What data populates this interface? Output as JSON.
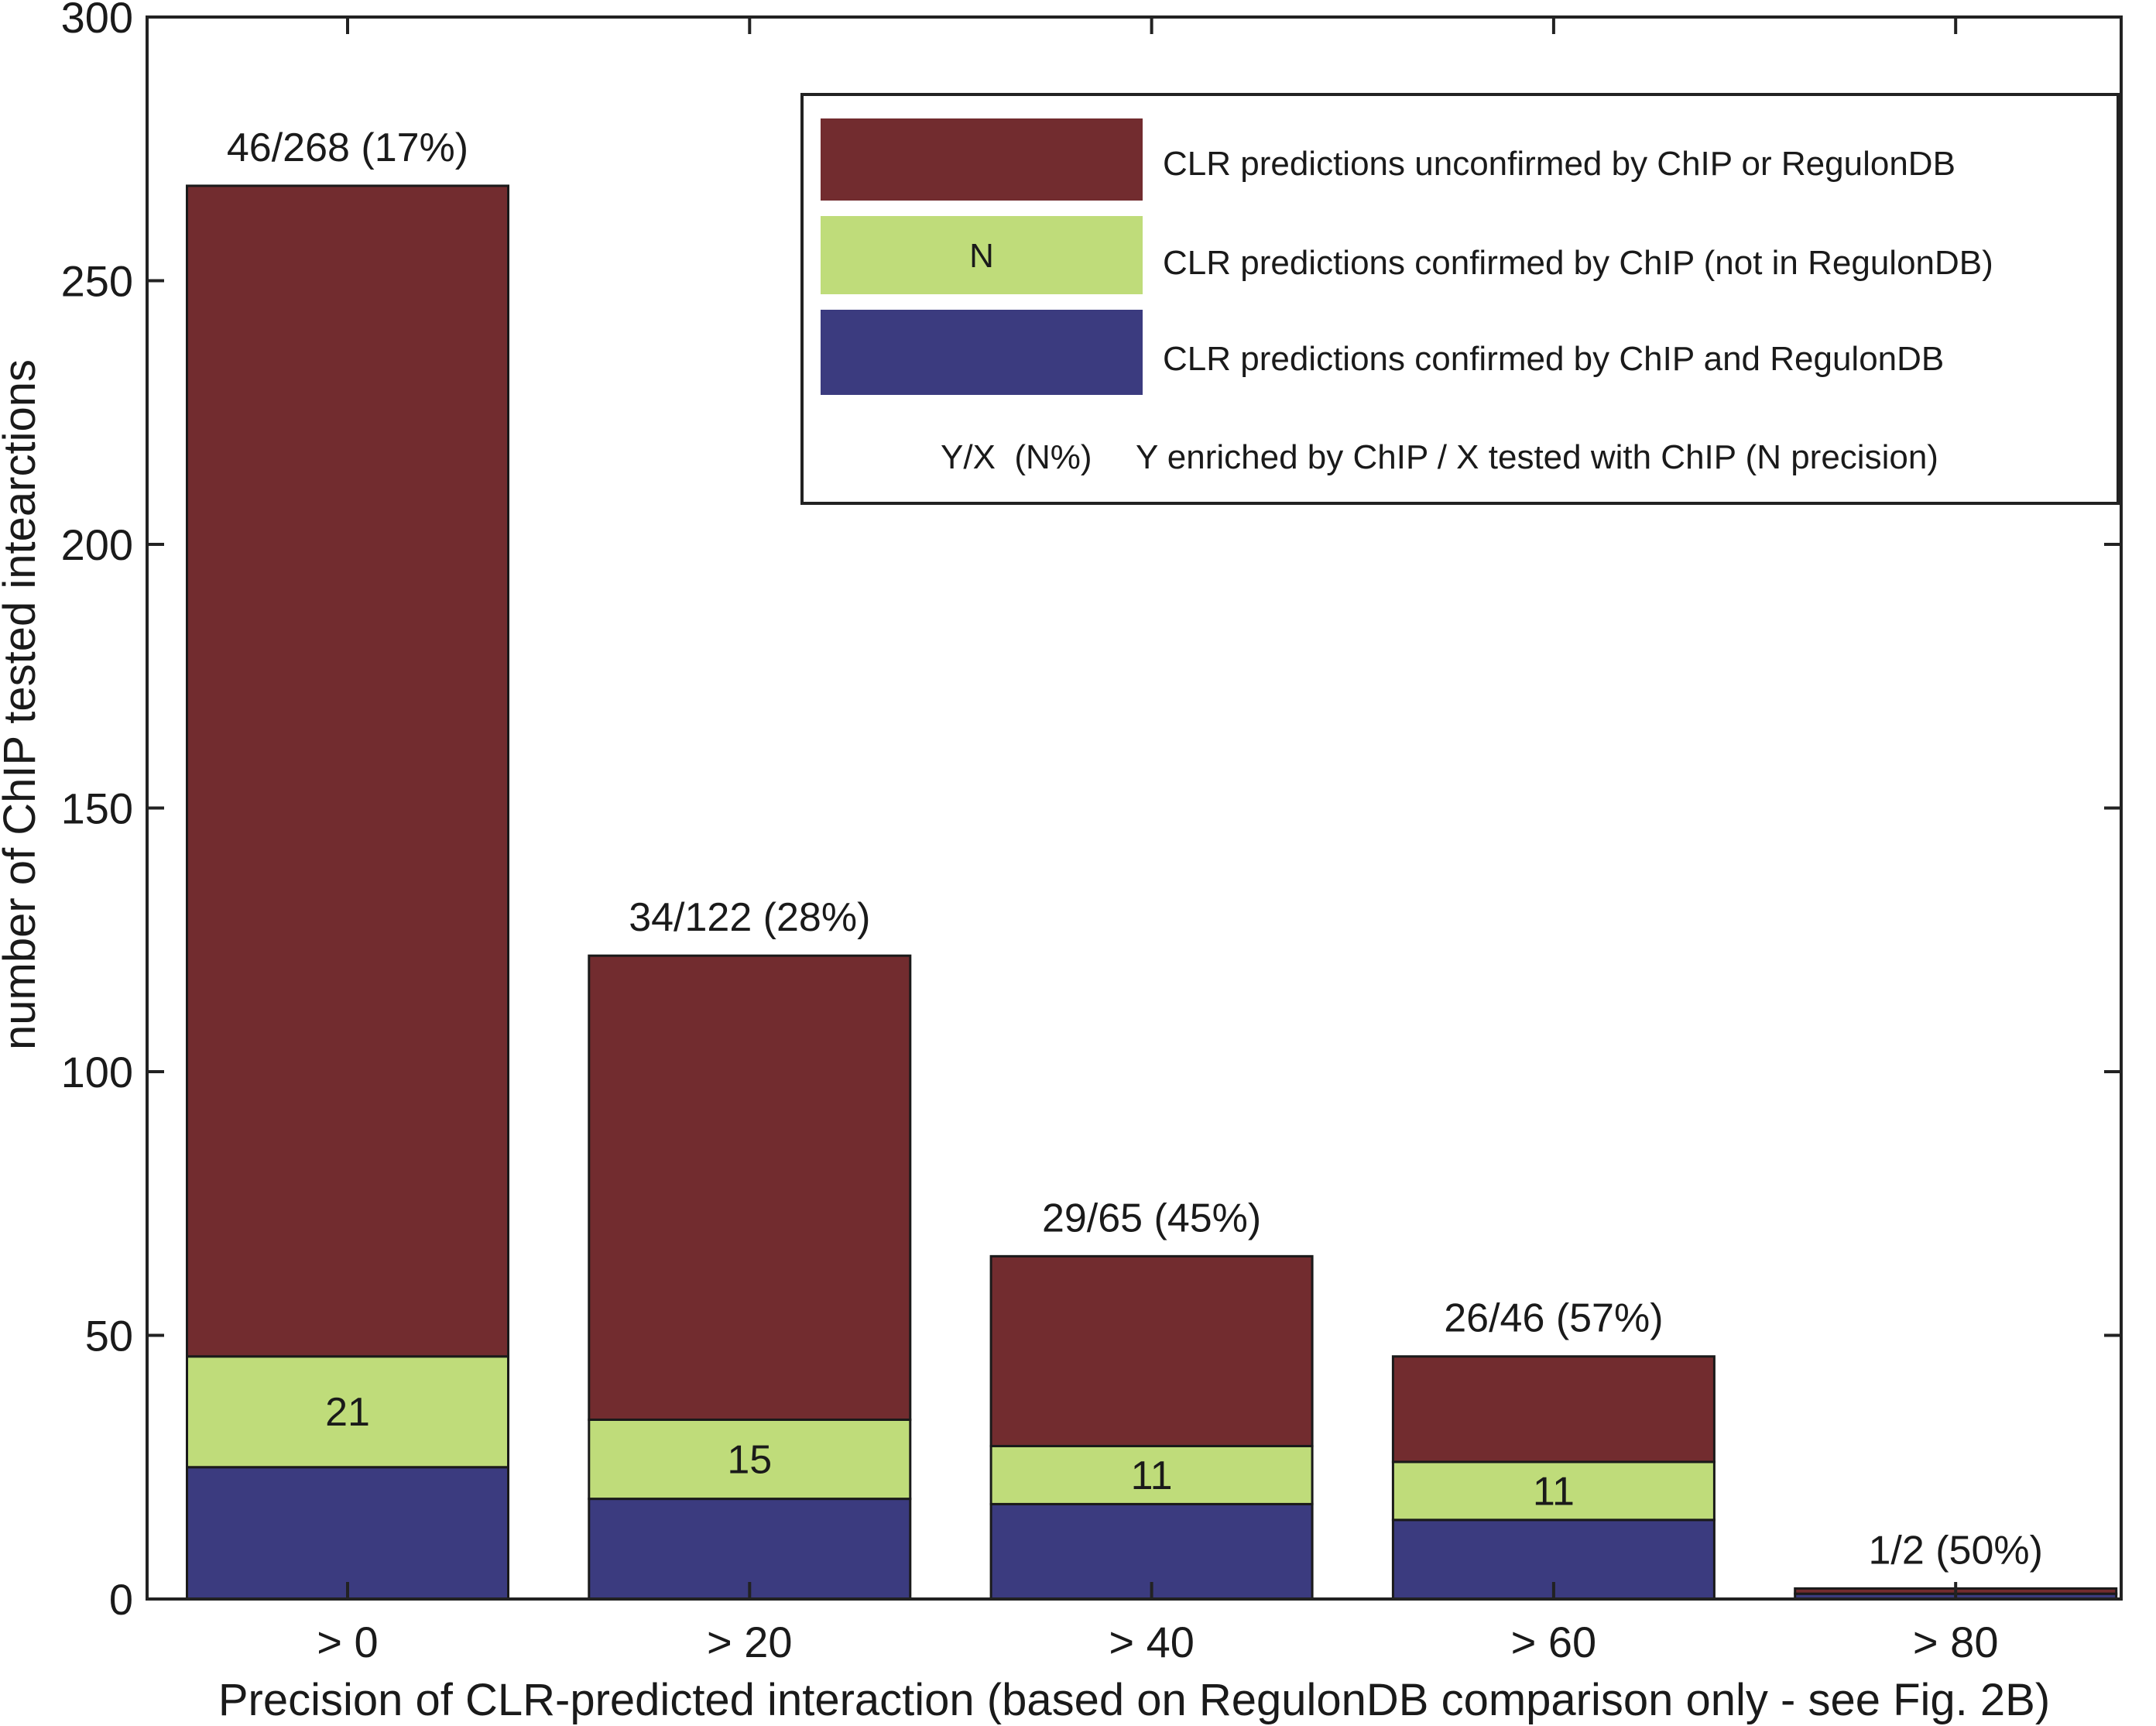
{
  "chart_data": {
    "type": "bar",
    "stacked": true,
    "title": "",
    "xlabel": "Precision of CLR-predicted interaction (based on RegulonDB comparison only - see Fig. 2B)",
    "ylabel": "number of ChIP tested intearctions",
    "categories": [
      "> 0",
      "> 20",
      "> 40",
      "> 60",
      "> 80"
    ],
    "ylim": [
      0,
      300
    ],
    "yticks": [
      0,
      50,
      100,
      150,
      200,
      250,
      300
    ],
    "series": [
      {
        "key": "both",
        "values": [
          25,
          19,
          18,
          15,
          1
        ],
        "color": "#3b3b7f"
      },
      {
        "key": "chip_only",
        "values": [
          21,
          15,
          11,
          11,
          0
        ],
        "color": "#bfdc7a"
      },
      {
        "key": "unconfirmed",
        "values": [
          222,
          88,
          36,
          20,
          1
        ],
        "color": "#722c2f"
      }
    ],
    "segment_labels": [
      "21",
      "15",
      "11",
      "11",
      ""
    ],
    "bar_labels": [
      "46/268 (17%)",
      "34/122 (28%)",
      "29/65 (45%)",
      "26/46 (57%)",
      "1/2 (50%)"
    ],
    "legend": {
      "placement": "top-right",
      "entries": [
        {
          "label": "CLR predictions unconfirmed by ChIP or RegulonDB",
          "color": "#722c2f",
          "swatch_text": ""
        },
        {
          "label": "CLR predictions confirmed by ChIP (not in RegulonDB)",
          "color": "#bfdc7a",
          "swatch_text": "N"
        },
        {
          "label": "CLR predictions confirmed by ChIP and RegulonDB",
          "color": "#3b3b7f",
          "swatch_text": ""
        }
      ],
      "note_key": "Y/X  (N%)",
      "note_text": "Y enriched by ChIP / X tested with ChIP (N precision)"
    }
  }
}
